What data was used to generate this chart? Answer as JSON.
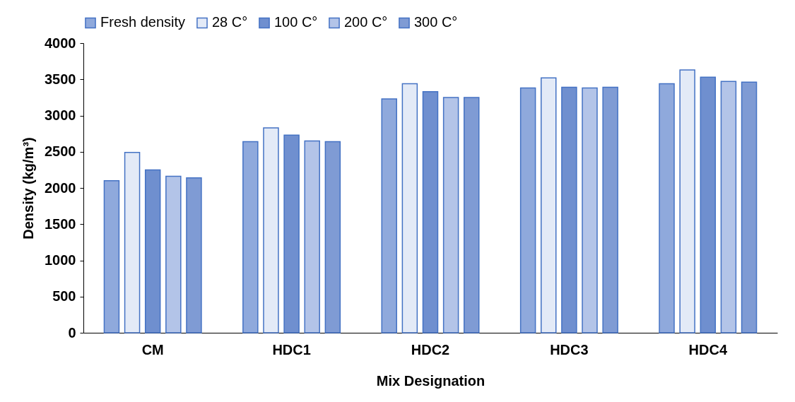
{
  "chart_data": {
    "type": "bar",
    "xlabel": "Mix Designation",
    "ylabel": "Density (kg/m³)",
    "categories": [
      "CM",
      "HDC1",
      "HDC2",
      "HDC3",
      "HDC4"
    ],
    "series": [
      {
        "name": "Fresh density",
        "color": "#8fa9dc",
        "values": [
          2100,
          2640,
          3230,
          3380,
          3440
        ]
      },
      {
        "name": "28 C°",
        "color": "#e3eaf7",
        "values": [
          2490,
          2830,
          3440,
          3520,
          3630
        ]
      },
      {
        "name": "100 C°",
        "color": "#6f8fcf",
        "values": [
          2250,
          2730,
          3330,
          3390,
          3530
        ]
      },
      {
        "name": "200 C°",
        "color": "#b3c4e8",
        "values": [
          2160,
          2650,
          3250,
          3380,
          3470
        ]
      },
      {
        "name": "300 C°",
        "color": "#7f9bd4",
        "values": [
          2140,
          2640,
          3250,
          3390,
          3460
        ]
      }
    ],
    "ylim": [
      0,
      4000
    ],
    "yticks": [
      0,
      500,
      1000,
      1500,
      2000,
      2500,
      3000,
      3500,
      4000
    ],
    "grid": false,
    "legend": "top"
  }
}
